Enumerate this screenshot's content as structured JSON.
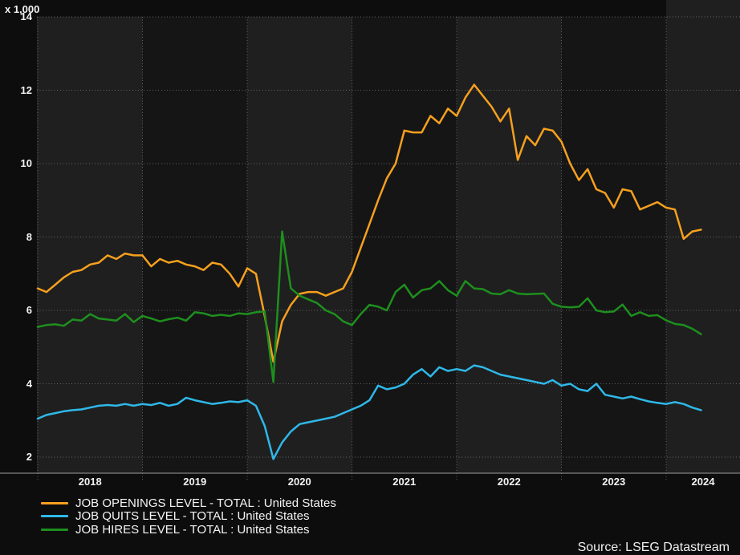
{
  "colors": {
    "background": "#0d0d0d",
    "band_light": "#1f1f1f",
    "band_dark": "#151515",
    "grid": "#909090",
    "axis": "#9e9e9e",
    "tick_text": "#f2f2f2",
    "legend_text": "#f5f5f5"
  },
  "chart_data": {
    "type": "line",
    "title": "",
    "y_axis_multiplier_label": "x 1,000",
    "y_ticks": [
      2,
      4,
      6,
      8,
      10,
      12,
      14
    ],
    "ylim": [
      2,
      14
    ],
    "x_tick_labels": [
      "2018",
      "2019",
      "2020",
      "2021",
      "2022",
      "2023",
      "2024"
    ],
    "x_start": "2018-01",
    "x_end": "2024-05",
    "frequency": "monthly",
    "grid": "dotted",
    "legend_position": "bottom-left",
    "source_note": "Source: LSEG Datastream",
    "series": [
      {
        "id": "openings",
        "name": "JOB OPENINGS LEVEL - TOTAL : United States",
        "color": "#f6a01e",
        "values": [
          6.6,
          6.5,
          6.7,
          6.9,
          7.05,
          7.1,
          7.25,
          7.3,
          7.5,
          7.4,
          7.55,
          7.5,
          7.5,
          7.2,
          7.4,
          7.3,
          7.35,
          7.25,
          7.2,
          7.1,
          7.3,
          7.25,
          7.0,
          6.65,
          7.15,
          7.0,
          5.85,
          4.6,
          5.7,
          6.15,
          6.45,
          6.5,
          6.5,
          6.4,
          6.5,
          6.6,
          7.05,
          7.7,
          8.35,
          9.0,
          9.6,
          10.0,
          10.9,
          10.85,
          10.85,
          11.3,
          11.1,
          11.5,
          11.3,
          11.8,
          12.15,
          11.85,
          11.55,
          11.15,
          11.5,
          10.1,
          10.75,
          10.5,
          10.95,
          10.9,
          10.6,
          10.0,
          9.55,
          9.85,
          9.3,
          9.2,
          8.8,
          9.3,
          9.25,
          8.75,
          8.85,
          8.95,
          8.8,
          8.75,
          7.95,
          8.15,
          8.2
        ]
      },
      {
        "id": "quits",
        "name": "JOB QUITS LEVEL - TOTAL : United States",
        "color": "#2fb8e8",
        "values": [
          3.05,
          3.15,
          3.2,
          3.25,
          3.28,
          3.3,
          3.35,
          3.4,
          3.42,
          3.4,
          3.45,
          3.4,
          3.45,
          3.42,
          3.48,
          3.4,
          3.45,
          3.62,
          3.55,
          3.5,
          3.45,
          3.48,
          3.52,
          3.5,
          3.55,
          3.4,
          2.85,
          1.95,
          2.4,
          2.7,
          2.9,
          2.95,
          3.0,
          3.05,
          3.1,
          3.2,
          3.3,
          3.4,
          3.55,
          3.95,
          3.85,
          3.9,
          4.0,
          4.25,
          4.4,
          4.2,
          4.45,
          4.35,
          4.4,
          4.35,
          4.5,
          4.45,
          4.35,
          4.25,
          4.2,
          4.15,
          4.1,
          4.05,
          4.0,
          4.1,
          3.95,
          4.0,
          3.85,
          3.8,
          4.0,
          3.7,
          3.65,
          3.6,
          3.65,
          3.58,
          3.52,
          3.48,
          3.45,
          3.5,
          3.45,
          3.35,
          3.28
        ]
      },
      {
        "id": "hires",
        "name": "JOB HIRES LEVEL - TOTAL : United States",
        "color": "#1e8f1e",
        "values": [
          5.55,
          5.6,
          5.62,
          5.58,
          5.75,
          5.72,
          5.9,
          5.78,
          5.75,
          5.72,
          5.9,
          5.68,
          5.85,
          5.78,
          5.7,
          5.76,
          5.8,
          5.72,
          5.95,
          5.92,
          5.85,
          5.88,
          5.85,
          5.92,
          5.9,
          5.95,
          5.97,
          4.05,
          8.15,
          6.6,
          6.4,
          6.3,
          6.2,
          6.0,
          5.9,
          5.7,
          5.6,
          5.9,
          6.15,
          6.1,
          6.0,
          6.5,
          6.7,
          6.35,
          6.55,
          6.6,
          6.8,
          6.55,
          6.4,
          6.8,
          6.6,
          6.58,
          6.46,
          6.44,
          6.55,
          6.46,
          6.44,
          6.45,
          6.46,
          6.18,
          6.1,
          6.08,
          6.1,
          6.33,
          6.0,
          5.95,
          5.97,
          6.16,
          5.85,
          5.95,
          5.85,
          5.87,
          5.73,
          5.63,
          5.6,
          5.5,
          5.35
        ]
      }
    ]
  }
}
